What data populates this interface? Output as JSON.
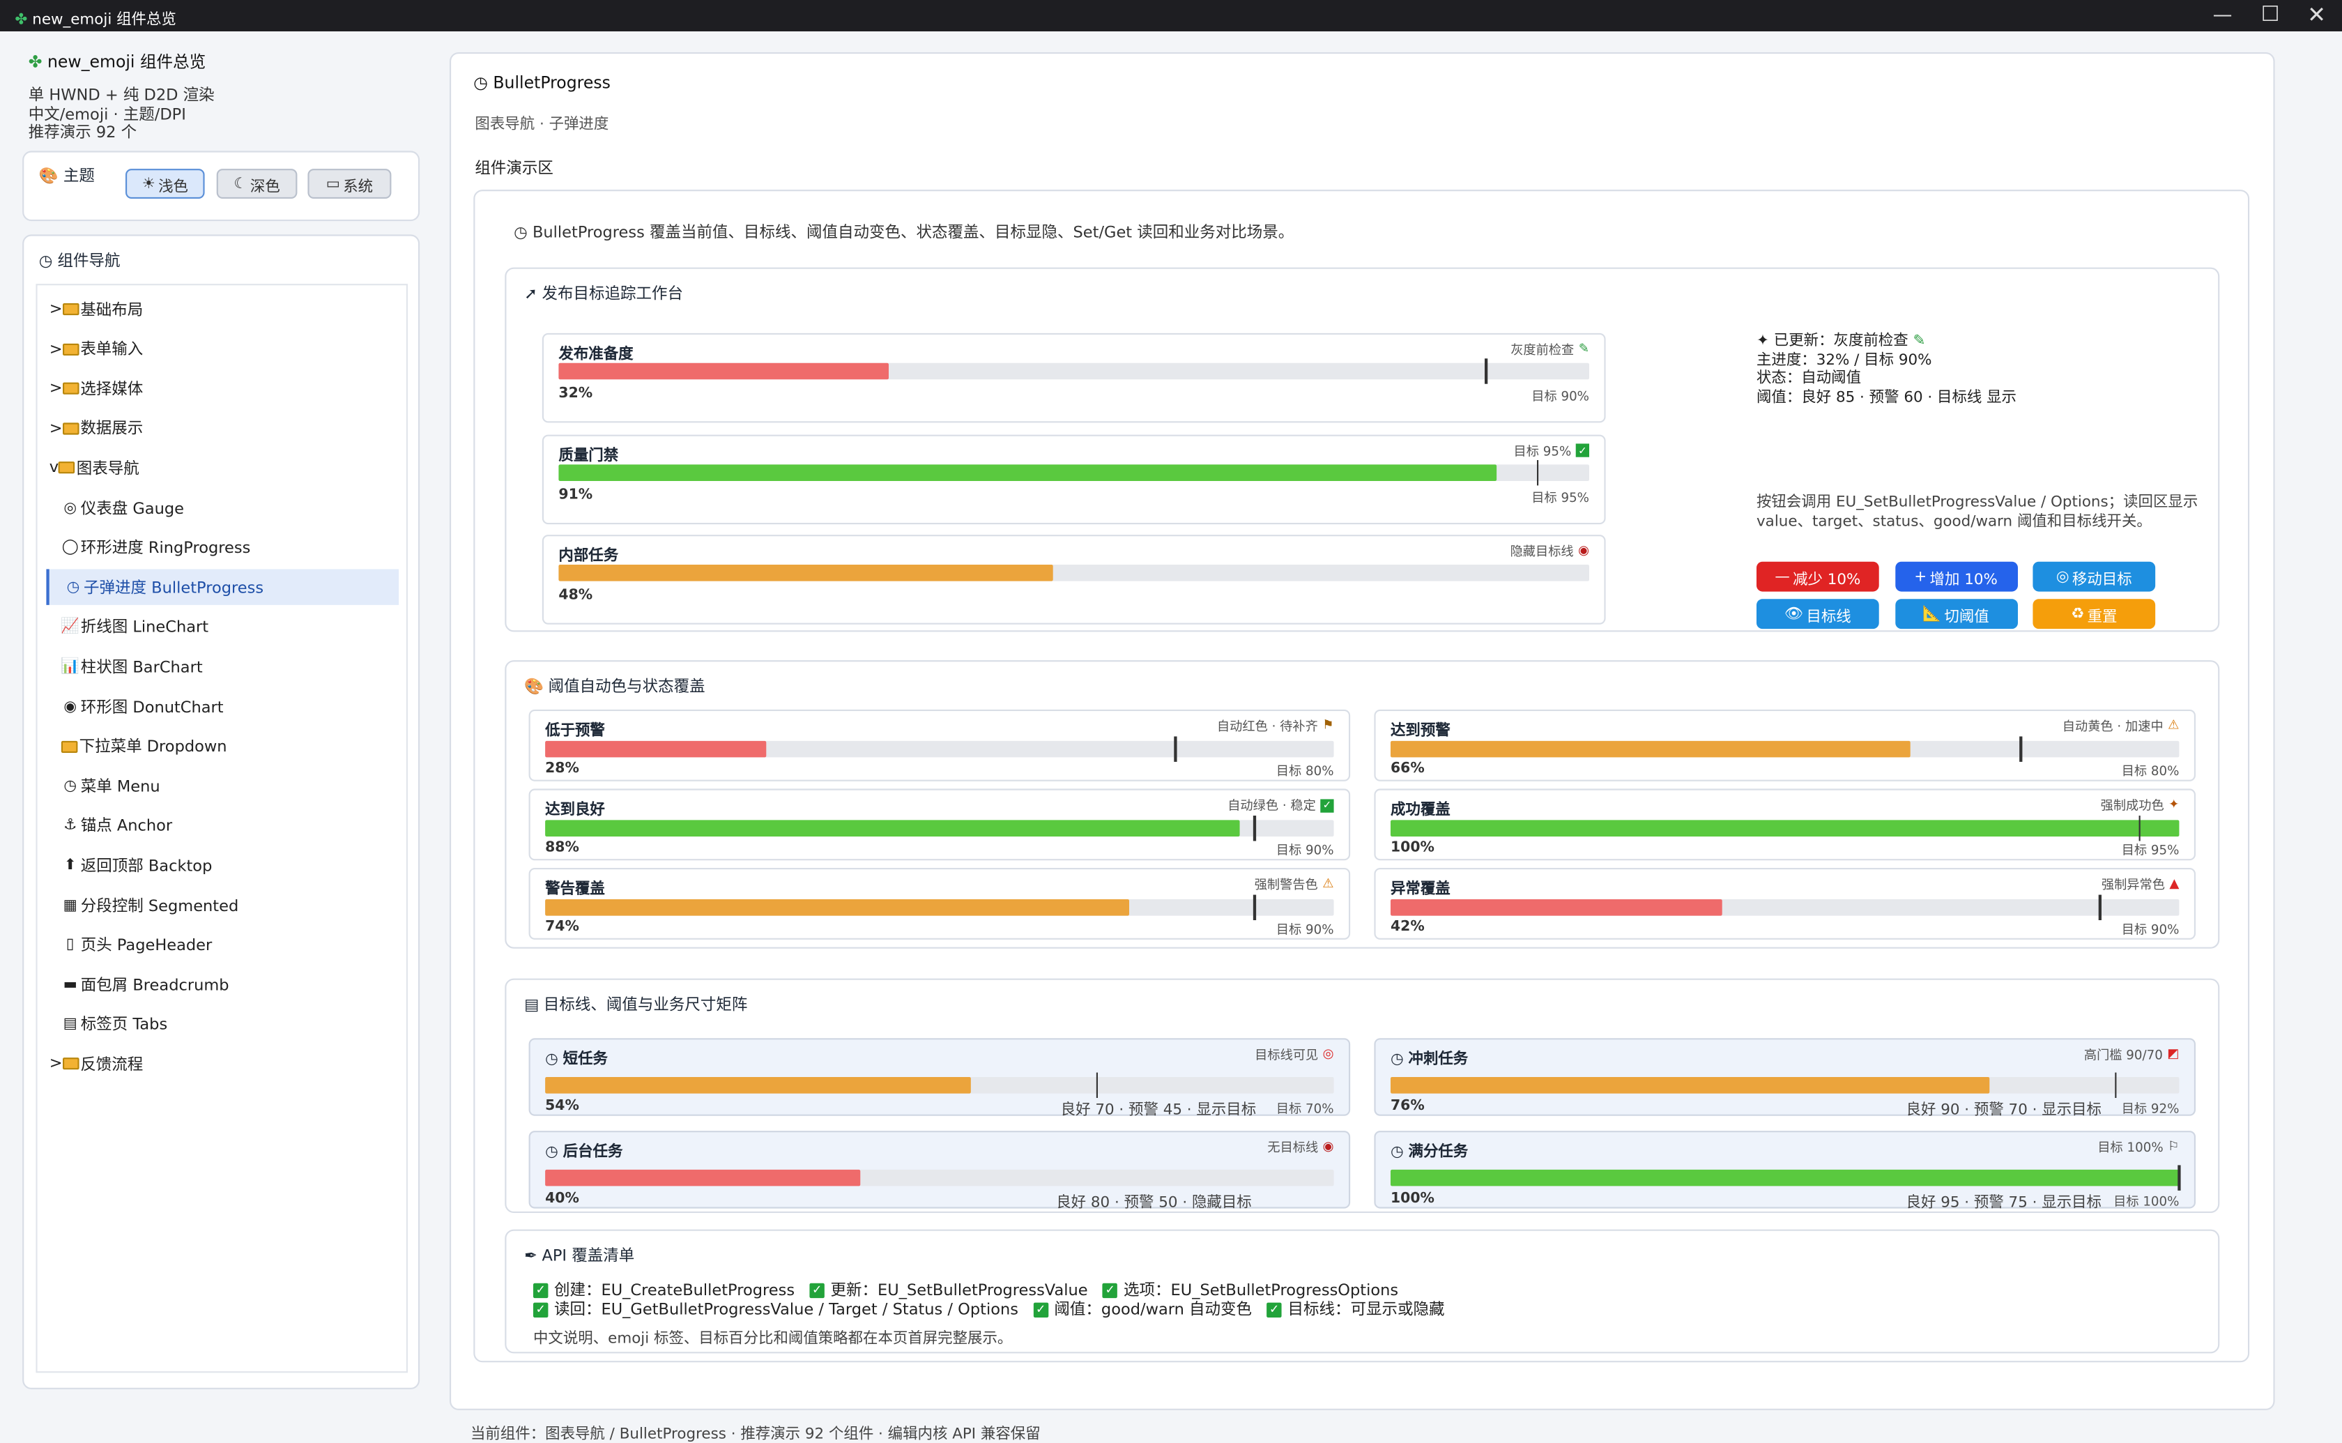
{
  "window": {
    "title": "new_emoji 组件总览"
  },
  "sidebar": {
    "app_title": "new_emoji 组件总览",
    "lines": [
      "单 HWND + 纯 D2D 渲染",
      "中文/emoji · 主题/DPI",
      "推荐演示 92 个"
    ],
    "theme": {
      "label": "主题",
      "buttons": [
        "浅色",
        "深色",
        "系统"
      ],
      "selected": "浅色"
    },
    "nav_title": "组件导航",
    "nav_items": [
      {
        "label": "基础布局",
        "prefix": ">",
        "icon": "folder-icon"
      },
      {
        "label": "表单输入",
        "prefix": ">",
        "icon": "folder-icon"
      },
      {
        "label": "选择媒体",
        "prefix": ">",
        "icon": "folder-icon"
      },
      {
        "label": "数据展示",
        "prefix": ">",
        "icon": "folder-icon"
      },
      {
        "label": "图表导航",
        "prefix": "v",
        "icon": "folder-icon"
      },
      {
        "label": "仪表盘 Gauge",
        "prefix": "",
        "icon": "target-icon"
      },
      {
        "label": "环形进度 RingProgress",
        "prefix": "",
        "icon": "ring-icon"
      },
      {
        "label": "子弹进度 BulletProgress",
        "prefix": "",
        "icon": "clock-icon",
        "selected": true
      },
      {
        "label": "折线图 LineChart",
        "prefix": "",
        "icon": "line-chart-icon"
      },
      {
        "label": "柱状图 BarChart",
        "prefix": "",
        "icon": "bar-chart-icon"
      },
      {
        "label": "环形图 DonutChart",
        "prefix": "",
        "icon": "donut-icon"
      },
      {
        "label": "下拉菜单 Dropdown",
        "prefix": "",
        "icon": "folder-icon"
      },
      {
        "label": "菜单 Menu",
        "prefix": "",
        "icon": "clock-icon"
      },
      {
        "label": "锚点 Anchor",
        "prefix": "",
        "icon": "anchor-icon"
      },
      {
        "label": "返回顶部 Backtop",
        "prefix": "",
        "icon": "backtop-icon"
      },
      {
        "label": "分段控制 Segmented",
        "prefix": "",
        "icon": "segmented-icon"
      },
      {
        "label": "页头 PageHeader",
        "prefix": "",
        "icon": "page-icon"
      },
      {
        "label": "面包屑 Breadcrumb",
        "prefix": "",
        "icon": "breadcrumb-icon"
      },
      {
        "label": "标签页 Tabs",
        "prefix": "",
        "icon": "tabs-icon"
      },
      {
        "label": "反馈流程",
        "prefix": ">",
        "icon": "folder-icon"
      }
    ]
  },
  "main": {
    "title": "BulletProgress",
    "breadcrumb": "图表导航 · 子弹进度",
    "demo_label": "组件演示区",
    "intro": "BulletProgress 覆盖当前值、目标线、阈值自动变色、状态覆盖、目标显隐、Set/Get 读回和业务对比场景。",
    "section1": {
      "title": "发布目标追踪工作台",
      "bars": [
        {
          "name": "发布准备度",
          "value": 32,
          "target": 90,
          "color": "#ef6b6b",
          "status": "灰度前检查",
          "status_icon": "pencil-icon",
          "pct": "32%",
          "tgt": "目标 90%",
          "show_target": true
        },
        {
          "name": "质量门禁",
          "value": 91,
          "target": 95,
          "color": "#5ac93f",
          "status": "目标 95%",
          "status_icon": "check-icon",
          "pct": "91%",
          "tgt": "目标 95%",
          "show_target": true
        },
        {
          "name": "内部任务",
          "value": 48,
          "target": null,
          "color": "#eba43c",
          "status": "隐藏目标线",
          "status_icon": "circle-icon",
          "pct": "48%",
          "tgt": "",
          "show_target": false
        }
      ],
      "info": [
        "已更新：灰度前检查",
        "主进度：32% / 目标 90%",
        "状态：自动阈值",
        "阈值：良好 85 · 预警 60 · 目标线 显示"
      ],
      "hint": [
        "按钮会调用 EU_SetBulletProgressValue / Options；读回区显示",
        "value、target、status、good/warn 阈值和目标线开关。"
      ],
      "buttons": [
        {
          "label": "减少 10%",
          "color": "#e02424",
          "icon": "minus-icon"
        },
        {
          "label": "增加 10%",
          "color": "#2563eb",
          "icon": "plus-icon"
        },
        {
          "label": "移动目标",
          "color": "#1e8fe0",
          "icon": "target-icon"
        },
        {
          "label": "目标线",
          "color": "#1e8fe0",
          "icon": "eye-icon"
        },
        {
          "label": "切阈值",
          "color": "#1e8fe0",
          "icon": "ruler-icon"
        },
        {
          "label": "重置",
          "color": "#f59e0b",
          "icon": "recycle-icon"
        }
      ]
    },
    "section2": {
      "title": "阈值自动色与状态覆盖",
      "bars": [
        {
          "name": "低于预警",
          "value": 28,
          "target": 80,
          "color": "#ef6b6b",
          "status": "自动红色 · 待补齐",
          "pct": "28%",
          "tgt": "目标 80%"
        },
        {
          "name": "达到预警",
          "value": 66,
          "target": 80,
          "color": "#eba43c",
          "status": "自动黄色 · 加速中",
          "pct": "66%",
          "tgt": "目标 80%"
        },
        {
          "name": "达到良好",
          "value": 88,
          "target": 90,
          "color": "#5ac93f",
          "status": "自动绿色 · 稳定",
          "pct": "88%",
          "tgt": "目标 90%"
        },
        {
          "name": "成功覆盖",
          "value": 100,
          "target": 95,
          "color": "#5ac93f",
          "status": "强制成功色",
          "pct": "100%",
          "tgt": "目标 95%"
        },
        {
          "name": "警告覆盖",
          "value": 74,
          "target": 90,
          "color": "#eba43c",
          "status": "强制警告色",
          "pct": "74%",
          "tgt": "目标 90%"
        },
        {
          "name": "异常覆盖",
          "value": 42,
          "target": 90,
          "color": "#ef6b6b",
          "status": "强制异常色",
          "pct": "42%",
          "tgt": "目标 90%"
        }
      ]
    },
    "section3": {
      "title": "目标线、阈值与业务尺寸矩阵",
      "bars": [
        {
          "name": "短任务",
          "value": 54,
          "target": 70,
          "color": "#eba43c",
          "status": "目标线可见",
          "pct": "54%",
          "tgt": "目标 70%",
          "extra": "良好 70 · 预警 45 · 显示目标"
        },
        {
          "name": "冲刺任务",
          "value": 76,
          "target": 92,
          "color": "#eba43c",
          "status": "高门槛 90/70",
          "pct": "76%",
          "tgt": "目标 92%",
          "extra": "良好 90 · 预警 70 · 显示目标"
        },
        {
          "name": "后台任务",
          "value": 40,
          "target": null,
          "color": "#ef6b6b",
          "status": "无目标线",
          "pct": "40%",
          "tgt": "",
          "extra": "良好 80 · 预警 50 · 隐藏目标"
        },
        {
          "name": "满分任务",
          "value": 100,
          "target": 100,
          "color": "#5ac93f",
          "status": "目标 100%",
          "pct": "100%",
          "tgt": "目标 100%",
          "extra": "良好 95 · 预警 75 · 显示目标"
        }
      ]
    },
    "api": {
      "title": "API 覆盖清单",
      "line1": [
        "创建：EU_CreateBulletProgress",
        "更新：EU_SetBulletProgressValue",
        "选项：EU_SetBulletProgressOptions"
      ],
      "line2": [
        "读回：EU_GetBulletProgressValue / Target / Status / Options",
        "阈值：good/warn 自动变色",
        "目标线：可显示或隐藏"
      ],
      "note": "中文说明、emoji 标签、目标百分比和阈值策略都在本页首屏完整展示。"
    }
  },
  "statusbar": "当前组件：图表导航 / BulletProgress · 推荐演示 92 个组件 · 编辑内核 API 兼容保留"
}
